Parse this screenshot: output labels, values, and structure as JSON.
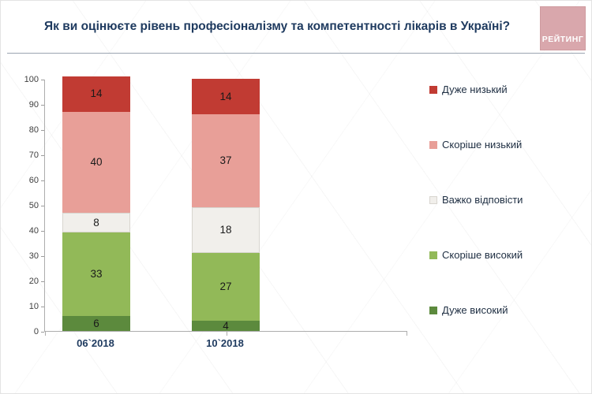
{
  "header": {
    "title": "Як ви оцінюєте рівень професіоналізму та компетентності лікарів в Україні?",
    "logo": "РЕЙТИНГ"
  },
  "chart_data": {
    "type": "bar",
    "stacked": true,
    "title": "Як ви оцінюєте рівень професіоналізму та компетентності лікарів в Україні?",
    "categories": [
      "06`2018",
      "10`2018"
    ],
    "series": [
      {
        "name": "Дуже високий",
        "color": "#5c8a3d",
        "values": [
          6,
          4
        ]
      },
      {
        "name": "Скоріше високий",
        "color": "#92b958",
        "values": [
          33,
          27
        ]
      },
      {
        "name": "Важко відповісти",
        "color": "#f1efeb",
        "border": "#d8d5cf",
        "values": [
          8,
          18
        ]
      },
      {
        "name": "Скоріше низький",
        "color": "#e89f98",
        "values": [
          40,
          37
        ]
      },
      {
        "name": "Дуже низький",
        "color": "#c13b33",
        "values": [
          14,
          14
        ]
      }
    ],
    "ylim": [
      0,
      100
    ],
    "ytick_step": 10,
    "xlabel": "",
    "ylabel": "",
    "grid": false,
    "legend_position": "right",
    "legend_order_top_to_bottom": [
      "Дуже низький",
      "Скоріше низький",
      "Важко відповісти",
      "Скоріше високий",
      "Дуже високий"
    ]
  }
}
